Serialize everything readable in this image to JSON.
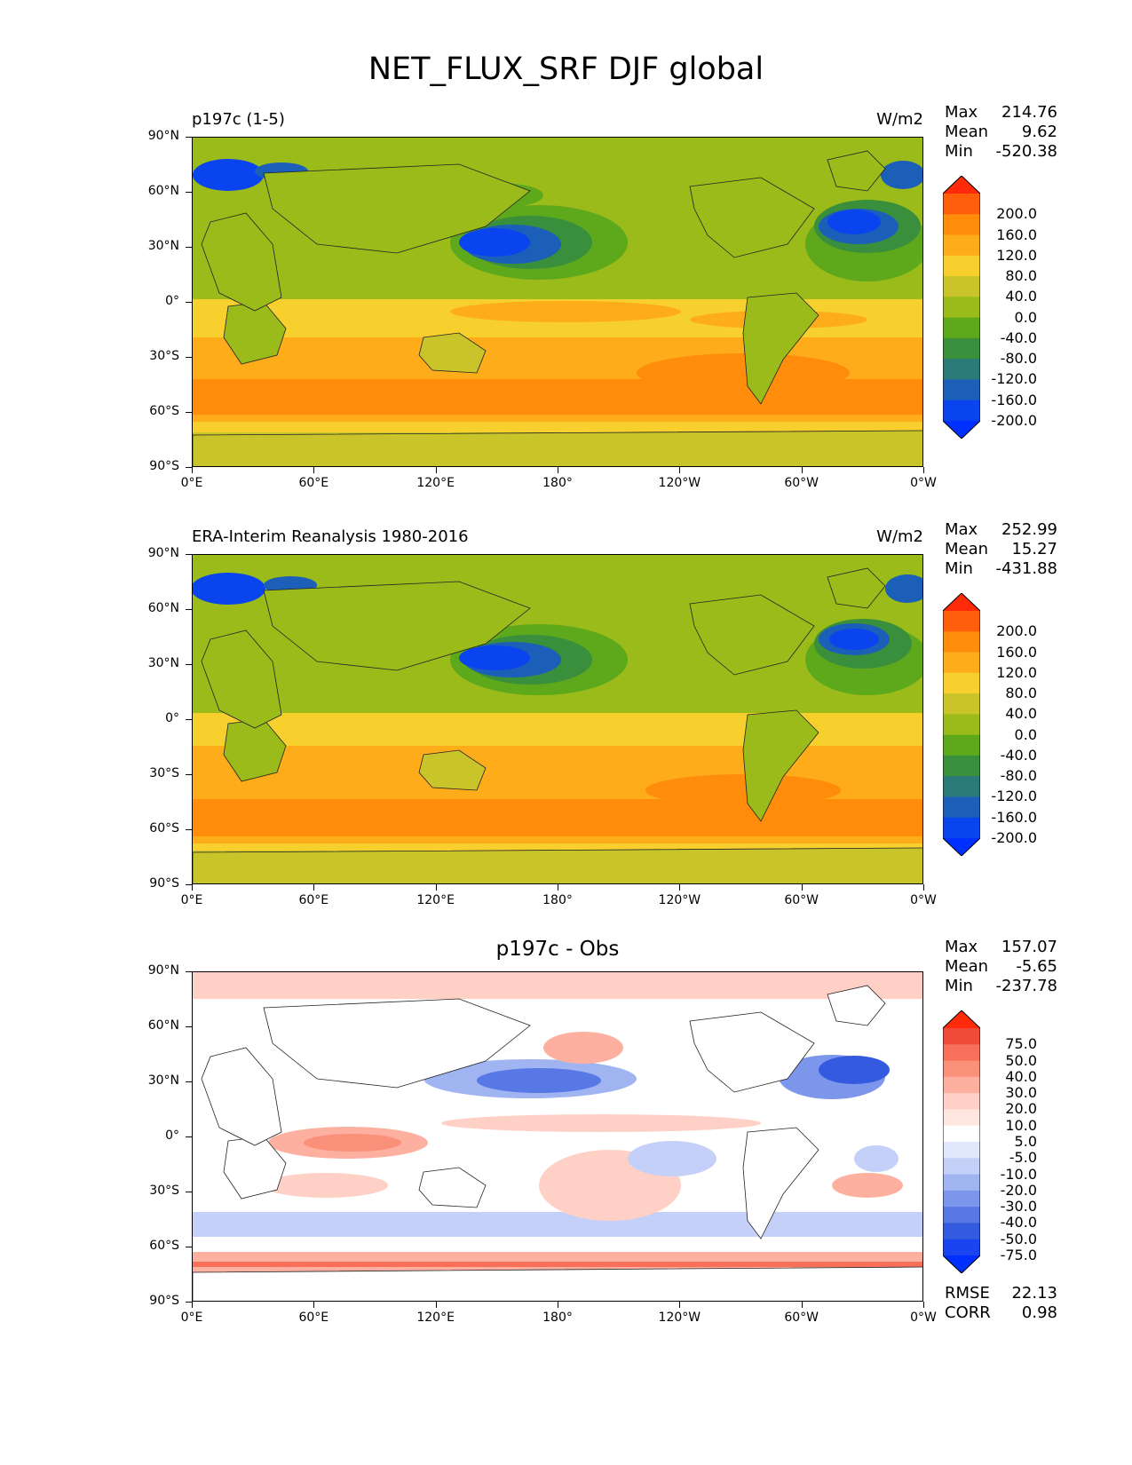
{
  "title": "NET_FLUX_SRF DJF global",
  "axes": {
    "lat_ticks": [
      "90°N",
      "60°N",
      "30°N",
      "0°",
      "30°S",
      "60°S",
      "90°S"
    ],
    "lon_ticks": [
      "0°E",
      "60°E",
      "120°E",
      "180°",
      "120°W",
      "60°W",
      "0°W"
    ]
  },
  "panels": [
    {
      "left_title": "p197c (1-5)",
      "center_title": "",
      "units": "W/m2",
      "stats": {
        "max_label": "Max",
        "max": "214.76",
        "mean_label": "Mean",
        "mean": "9.62",
        "min_label": "Min",
        "min": "-520.38"
      },
      "colorbar": {
        "labels": [
          "200.0",
          "160.0",
          "120.0",
          "80.0",
          "40.0",
          "0.0",
          "-40.0",
          "-80.0",
          "-120.0",
          "-160.0",
          "-200.0"
        ],
        "colors": [
          "#ff2a0a",
          "#ff5e0a",
          "#ff8c0a",
          "#ffac1a",
          "#f7d02e",
          "#c8c42a",
          "#9abb1a",
          "#5ea81c",
          "#3a8f3c",
          "#2a7a7a",
          "#1c5fb8",
          "#0a44ee",
          "#0030ff"
        ]
      }
    },
    {
      "left_title": "ERA-Interim Reanalysis 1980-2016",
      "center_title": "",
      "units": "W/m2",
      "stats": {
        "max_label": "Max",
        "max": "252.99",
        "mean_label": "Mean",
        "mean": "15.27",
        "min_label": "Min",
        "min": "-431.88"
      },
      "colorbar": {
        "labels": [
          "200.0",
          "160.0",
          "120.0",
          "80.0",
          "40.0",
          "0.0",
          "-40.0",
          "-80.0",
          "-120.0",
          "-160.0",
          "-200.0"
        ],
        "colors": [
          "#ff2a0a",
          "#ff5e0a",
          "#ff8c0a",
          "#ffac1a",
          "#f7d02e",
          "#c8c42a",
          "#9abb1a",
          "#5ea81c",
          "#3a8f3c",
          "#2a7a7a",
          "#1c5fb8",
          "#0a44ee",
          "#0030ff"
        ]
      }
    },
    {
      "left_title": "",
      "center_title": "p197c - Obs",
      "units": "",
      "stats": {
        "max_label": "Max",
        "max": "157.07",
        "mean_label": "Mean",
        "mean": "-5.65",
        "min_label": "Min",
        "min": "-237.78"
      },
      "colorbar": {
        "labels": [
          "75.0",
          "50.0",
          "40.0",
          "30.0",
          "20.0",
          "10.0",
          "5.0",
          "-5.0",
          "-10.0",
          "-20.0",
          "-30.0",
          "-40.0",
          "-50.0",
          "-75.0"
        ],
        "colors": [
          "#ff2a0a",
          "#f04a3a",
          "#f8705a",
          "#fb907a",
          "#fdb0a0",
          "#fed0c6",
          "#ffe6e0",
          "#ffffff",
          "#e2e8fb",
          "#c4d0f7",
          "#a0b4f2",
          "#7c96ec",
          "#5878e6",
          "#345ae0",
          "#1a44f0",
          "#0030ff"
        ]
      },
      "rmse_label": "RMSE",
      "rmse": "22.13",
      "corr_label": "CORR",
      "corr": "0.98"
    }
  ]
}
